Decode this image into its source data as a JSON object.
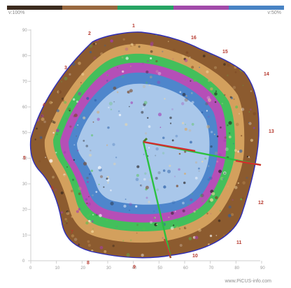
{
  "legend": {
    "left_label": "v:100%",
    "right_label": "v:50%",
    "colors": [
      "#3c2b1e",
      "#98683f",
      "#26a463",
      "#a24aa9",
      "#4883c4"
    ]
  },
  "axes": {
    "x_ticks": [
      "0",
      "10",
      "20",
      "30",
      "40",
      "50",
      "60",
      "70",
      "80",
      "90"
    ],
    "y_ticks": [
      "0",
      "10",
      "20",
      "30",
      "40",
      "50",
      "60",
      "70",
      "80",
      "90"
    ]
  },
  "sensors": [
    "1",
    "2",
    "3",
    "4",
    "5",
    "6",
    "7",
    "8",
    "9",
    "10",
    "11",
    "12",
    "13",
    "14",
    "15",
    "16"
  ],
  "footer": {
    "watermark": "www.PiCUS-info.com"
  }
}
